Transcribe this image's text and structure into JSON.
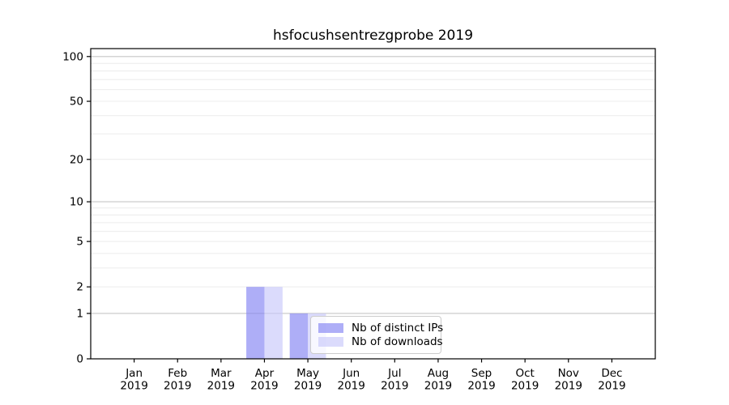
{
  "title": "hsfocushsentrezgprobe 2019",
  "chart_data": {
    "type": "bar",
    "title": "hsfocushsentrezgprobe 2019",
    "categories": [
      "Jan",
      "Feb",
      "Mar",
      "Apr",
      "May",
      "Jun",
      "Jul",
      "Aug",
      "Sep",
      "Oct",
      "Nov",
      "Dec"
    ],
    "category_year": "2019",
    "series": [
      {
        "name": "Nb of distinct IPs",
        "values": [
          0,
          0,
          0,
          2,
          1,
          0,
          0,
          0,
          0,
          0,
          0,
          0
        ],
        "fill": "rgba(130,130,242,0.65)"
      },
      {
        "name": "Nb of downloads",
        "values": [
          0,
          0,
          0,
          2,
          1,
          0,
          0,
          0,
          0,
          0,
          0,
          0
        ],
        "fill": "rgba(200,200,250,0.65)"
      }
    ],
    "xlabel": "",
    "ylabel": "",
    "yscale": "log1p",
    "yticks": [
      0,
      1,
      2,
      5,
      10,
      20,
      50,
      100
    ],
    "ylim": [
      0,
      113
    ],
    "major_gridlines": [
      1,
      10,
      100
    ],
    "minor_gridlines": [
      2,
      3,
      4,
      5,
      6,
      7,
      8,
      9,
      20,
      30,
      40,
      50,
      60,
      70,
      80,
      90
    ],
    "grid": "horizontal",
    "legend_position": "inside-lower-center-right"
  },
  "colors": {
    "background": "#ffffff",
    "axis": "#000000",
    "tick_label": "#000000",
    "major_grid": "#c6c6c6",
    "minor_grid": "#ececec",
    "legend_border": "#cccccc",
    "legend_background": "rgba(255,255,255,0.8)",
    "series_dark": "rgba(130,130,242,0.65)",
    "series_light": "rgba(200,200,250,0.65)"
  }
}
